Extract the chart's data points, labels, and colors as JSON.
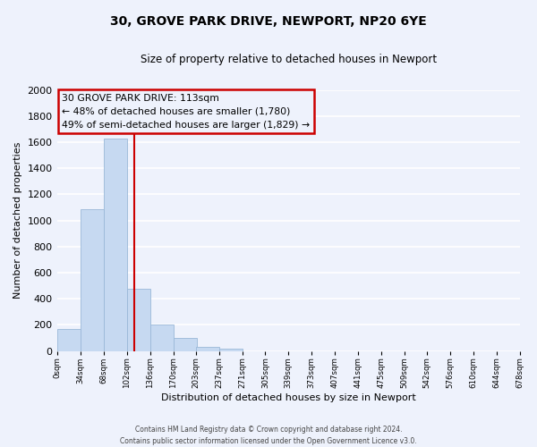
{
  "title": "30, GROVE PARK DRIVE, NEWPORT, NP20 6YE",
  "subtitle": "Size of property relative to detached houses in Newport",
  "xlabel": "Distribution of detached houses by size in Newport",
  "ylabel": "Number of detached properties",
  "bin_labels": [
    "0sqm",
    "34sqm",
    "68sqm",
    "102sqm",
    "136sqm",
    "170sqm",
    "203sqm",
    "237sqm",
    "271sqm",
    "305sqm",
    "339sqm",
    "373sqm",
    "407sqm",
    "441sqm",
    "475sqm",
    "509sqm",
    "542sqm",
    "576sqm",
    "610sqm",
    "644sqm",
    "678sqm"
  ],
  "bin_edges": [
    0,
    34,
    68,
    102,
    136,
    170,
    203,
    237,
    271,
    305,
    339,
    373,
    407,
    441,
    475,
    509,
    542,
    576,
    610,
    644,
    678
  ],
  "bar_heights": [
    170,
    1085,
    1630,
    475,
    200,
    100,
    35,
    15,
    0,
    0,
    0,
    0,
    0,
    0,
    0,
    0,
    0,
    0,
    0,
    0
  ],
  "bar_color": "#c6d9f1",
  "bar_edge_color": "#9ab8d8",
  "vline_x": 113,
  "vline_color": "#cc0000",
  "annotation_title": "30 GROVE PARK DRIVE: 113sqm",
  "annotation_line1": "← 48% of detached houses are smaller (1,780)",
  "annotation_line2": "49% of semi-detached houses are larger (1,829) →",
  "annotation_box_color": "#cc0000",
  "ylim": [
    0,
    2000
  ],
  "yticks": [
    0,
    200,
    400,
    600,
    800,
    1000,
    1200,
    1400,
    1600,
    1800,
    2000
  ],
  "xlim_max": 678,
  "background_color": "#eef2fc",
  "grid_color": "#ffffff",
  "footer_line1": "Contains HM Land Registry data © Crown copyright and database right 2024.",
  "footer_line2": "Contains public sector information licensed under the Open Government Licence v3.0."
}
